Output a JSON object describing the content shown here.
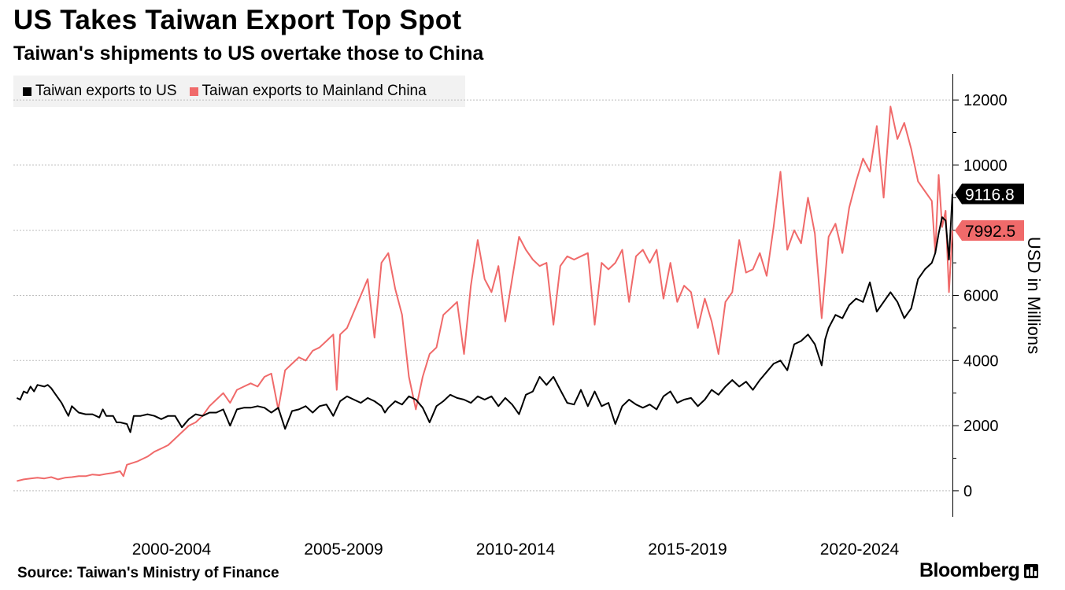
{
  "header": {
    "title": "US Takes Taiwan Export Top Spot",
    "subtitle": "Taiwan's shipments to US overtake those to China"
  },
  "legend": [
    {
      "label": "Taiwan exports to US",
      "color": "#000000"
    },
    {
      "label": "Taiwan exports to Mainland China",
      "color": "#f06a6a"
    }
  ],
  "footer": {
    "source": "Source: Taiwan's Ministry of Finance",
    "brand": "Bloomberg"
  },
  "colors": {
    "us": "#000000",
    "china": "#f06a6a",
    "grid": "#bdbdbd"
  },
  "chart_data": {
    "type": "line",
    "ylabel": "USD in Millions",
    "ylim": [
      -800,
      12800
    ],
    "yticks": [
      0,
      2000,
      4000,
      6000,
      8000,
      10000,
      12000
    ],
    "x_range": [
      1997.9,
      2025.2
    ],
    "xtick_labels": [
      {
        "label": "2000-2004",
        "center": 2002.5
      },
      {
        "label": "2005-2009",
        "center": 2007.5
      },
      {
        "label": "2010-2014",
        "center": 2012.5
      },
      {
        "label": "2015-2019",
        "center": 2017.5
      },
      {
        "label": "2020-2024",
        "center": 2022.5
      }
    ],
    "grid": true,
    "legend_position": "top-left",
    "end_labels": [
      {
        "series": "Taiwan exports to US",
        "value": "9116.8"
      },
      {
        "series": "Taiwan exports to Mainland China",
        "value": "7992.5"
      }
    ],
    "series": [
      {
        "name": "Taiwan exports to US",
        "color": "#000000",
        "points": [
          [
            1998.0,
            2850
          ],
          [
            1998.1,
            2800
          ],
          [
            1998.2,
            3050
          ],
          [
            1998.3,
            3000
          ],
          [
            1998.4,
            3200
          ],
          [
            1998.5,
            3050
          ],
          [
            1998.6,
            3250
          ],
          [
            1998.8,
            3200
          ],
          [
            1998.9,
            3250
          ],
          [
            1999.0,
            3150
          ],
          [
            1999.1,
            3000
          ],
          [
            1999.3,
            2700
          ],
          [
            1999.4,
            2500
          ],
          [
            1999.5,
            2300
          ],
          [
            1999.6,
            2600
          ],
          [
            1999.8,
            2400
          ],
          [
            2000.0,
            2350
          ],
          [
            2000.2,
            2350
          ],
          [
            2000.4,
            2250
          ],
          [
            2000.5,
            2500
          ],
          [
            2000.6,
            2300
          ],
          [
            2000.8,
            2300
          ],
          [
            2000.9,
            2100
          ],
          [
            2001.0,
            2100
          ],
          [
            2001.2,
            2050
          ],
          [
            2001.3,
            1800
          ],
          [
            2001.4,
            2300
          ],
          [
            2001.6,
            2300
          ],
          [
            2001.8,
            2350
          ],
          [
            2002.0,
            2300
          ],
          [
            2002.2,
            2200
          ],
          [
            2002.4,
            2300
          ],
          [
            2002.6,
            2300
          ],
          [
            2002.8,
            1950
          ],
          [
            2003.0,
            2200
          ],
          [
            2003.2,
            2350
          ],
          [
            2003.4,
            2300
          ],
          [
            2003.6,
            2400
          ],
          [
            2003.8,
            2400
          ],
          [
            2004.0,
            2500
          ],
          [
            2004.2,
            2000
          ],
          [
            2004.4,
            2500
          ],
          [
            2004.6,
            2550
          ],
          [
            2004.8,
            2550
          ],
          [
            2005.0,
            2600
          ],
          [
            2005.2,
            2550
          ],
          [
            2005.4,
            2400
          ],
          [
            2005.6,
            2550
          ],
          [
            2005.8,
            1900
          ],
          [
            2006.0,
            2450
          ],
          [
            2006.2,
            2500
          ],
          [
            2006.4,
            2600
          ],
          [
            2006.6,
            2400
          ],
          [
            2006.8,
            2600
          ],
          [
            2007.0,
            2650
          ],
          [
            2007.2,
            2300
          ],
          [
            2007.4,
            2750
          ],
          [
            2007.6,
            2900
          ],
          [
            2007.8,
            2800
          ],
          [
            2008.0,
            2700
          ],
          [
            2008.2,
            2850
          ],
          [
            2008.4,
            2750
          ],
          [
            2008.6,
            2600
          ],
          [
            2008.7,
            2400
          ],
          [
            2008.8,
            2550
          ],
          [
            2009.0,
            2750
          ],
          [
            2009.2,
            2650
          ],
          [
            2009.4,
            2900
          ],
          [
            2009.6,
            2800
          ],
          [
            2009.8,
            2550
          ],
          [
            2010.0,
            2100
          ],
          [
            2010.2,
            2600
          ],
          [
            2010.4,
            2750
          ],
          [
            2010.6,
            2950
          ],
          [
            2010.8,
            2850
          ],
          [
            2011.0,
            2800
          ],
          [
            2011.2,
            2700
          ],
          [
            2011.4,
            2900
          ],
          [
            2011.6,
            2800
          ],
          [
            2011.8,
            2900
          ],
          [
            2012.0,
            2600
          ],
          [
            2012.2,
            2850
          ],
          [
            2012.4,
            2650
          ],
          [
            2012.6,
            2350
          ],
          [
            2012.8,
            2950
          ],
          [
            2013.0,
            3050
          ],
          [
            2013.2,
            3500
          ],
          [
            2013.4,
            3250
          ],
          [
            2013.6,
            3500
          ],
          [
            2013.8,
            3100
          ],
          [
            2014.0,
            2700
          ],
          [
            2014.2,
            2650
          ],
          [
            2014.4,
            3100
          ],
          [
            2014.6,
            2600
          ],
          [
            2014.8,
            3050
          ],
          [
            2015.0,
            2600
          ],
          [
            2015.2,
            2700
          ],
          [
            2015.4,
            2050
          ],
          [
            2015.6,
            2600
          ],
          [
            2015.8,
            2800
          ],
          [
            2016.0,
            2650
          ],
          [
            2016.2,
            2550
          ],
          [
            2016.4,
            2650
          ],
          [
            2016.6,
            2500
          ],
          [
            2016.8,
            2900
          ],
          [
            2017.0,
            3050
          ],
          [
            2017.2,
            2700
          ],
          [
            2017.4,
            2800
          ],
          [
            2017.6,
            2850
          ],
          [
            2017.8,
            2600
          ],
          [
            2018.0,
            2800
          ],
          [
            2018.2,
            3100
          ],
          [
            2018.4,
            2950
          ],
          [
            2018.6,
            3200
          ],
          [
            2018.8,
            3400
          ],
          [
            2019.0,
            3200
          ],
          [
            2019.2,
            3350
          ],
          [
            2019.4,
            3100
          ],
          [
            2019.6,
            3400
          ],
          [
            2019.8,
            3650
          ],
          [
            2020.0,
            3900
          ],
          [
            2020.2,
            4000
          ],
          [
            2020.4,
            3700
          ],
          [
            2020.6,
            4500
          ],
          [
            2020.8,
            4600
          ],
          [
            2021.0,
            4800
          ],
          [
            2021.2,
            4500
          ],
          [
            2021.4,
            3850
          ],
          [
            2021.5,
            4650
          ],
          [
            2021.6,
            5000
          ],
          [
            2021.8,
            5400
          ],
          [
            2022.0,
            5300
          ],
          [
            2022.2,
            5700
          ],
          [
            2022.4,
            5900
          ],
          [
            2022.6,
            5800
          ],
          [
            2022.8,
            6400
          ],
          [
            2023.0,
            5500
          ],
          [
            2023.2,
            5800
          ],
          [
            2023.4,
            6100
          ],
          [
            2023.6,
            5800
          ],
          [
            2023.8,
            5300
          ],
          [
            2024.0,
            5600
          ],
          [
            2024.2,
            6500
          ],
          [
            2024.4,
            6800
          ],
          [
            2024.6,
            7000
          ],
          [
            2024.7,
            7300
          ],
          [
            2024.8,
            7900
          ],
          [
            2024.9,
            8400
          ],
          [
            2025.0,
            8300
          ],
          [
            2025.1,
            7100
          ],
          [
            2025.2,
            9117
          ]
        ]
      },
      {
        "name": "Taiwan exports to Mainland China",
        "color": "#f06a6a",
        "points": [
          [
            1998.0,
            300
          ],
          [
            1998.2,
            350
          ],
          [
            1998.4,
            380
          ],
          [
            1998.6,
            400
          ],
          [
            1998.8,
            380
          ],
          [
            1999.0,
            420
          ],
          [
            1999.2,
            350
          ],
          [
            1999.4,
            400
          ],
          [
            1999.6,
            420
          ],
          [
            1999.8,
            450
          ],
          [
            2000.0,
            450
          ],
          [
            2000.2,
            500
          ],
          [
            2000.4,
            480
          ],
          [
            2000.6,
            520
          ],
          [
            2000.8,
            550
          ],
          [
            2001.0,
            600
          ],
          [
            2001.1,
            450
          ],
          [
            2001.2,
            800
          ],
          [
            2001.5,
            900
          ],
          [
            2001.8,
            1050
          ],
          [
            2002.0,
            1200
          ],
          [
            2002.2,
            1300
          ],
          [
            2002.4,
            1400
          ],
          [
            2002.6,
            1600
          ],
          [
            2002.8,
            1800
          ],
          [
            2003.0,
            2000
          ],
          [
            2003.2,
            2100
          ],
          [
            2003.4,
            2300
          ],
          [
            2003.6,
            2600
          ],
          [
            2003.8,
            2800
          ],
          [
            2004.0,
            3000
          ],
          [
            2004.2,
            2700
          ],
          [
            2004.4,
            3100
          ],
          [
            2004.6,
            3200
          ],
          [
            2004.8,
            3300
          ],
          [
            2005.0,
            3200
          ],
          [
            2005.2,
            3500
          ],
          [
            2005.4,
            3600
          ],
          [
            2005.6,
            2500
          ],
          [
            2005.8,
            3700
          ],
          [
            2006.0,
            3900
          ],
          [
            2006.2,
            4100
          ],
          [
            2006.4,
            4000
          ],
          [
            2006.6,
            4300
          ],
          [
            2006.8,
            4400
          ],
          [
            2007.0,
            4600
          ],
          [
            2007.2,
            4800
          ],
          [
            2007.3,
            3100
          ],
          [
            2007.4,
            4800
          ],
          [
            2007.6,
            5000
          ],
          [
            2007.8,
            5500
          ],
          [
            2008.0,
            6000
          ],
          [
            2008.2,
            6500
          ],
          [
            2008.4,
            4700
          ],
          [
            2008.6,
            7000
          ],
          [
            2008.8,
            7300
          ],
          [
            2009.0,
            6200
          ],
          [
            2009.2,
            5400
          ],
          [
            2009.4,
            3500
          ],
          [
            2009.6,
            2500
          ],
          [
            2009.8,
            3500
          ],
          [
            2010.0,
            4200
          ],
          [
            2010.2,
            4400
          ],
          [
            2010.4,
            5400
          ],
          [
            2010.6,
            5600
          ],
          [
            2010.8,
            5800
          ],
          [
            2011.0,
            4200
          ],
          [
            2011.2,
            6300
          ],
          [
            2011.4,
            7700
          ],
          [
            2011.6,
            6500
          ],
          [
            2011.8,
            6100
          ],
          [
            2012.0,
            6900
          ],
          [
            2012.2,
            5200
          ],
          [
            2012.4,
            6500
          ],
          [
            2012.6,
            7800
          ],
          [
            2012.8,
            7400
          ],
          [
            2013.0,
            7100
          ],
          [
            2013.2,
            6900
          ],
          [
            2013.4,
            7000
          ],
          [
            2013.6,
            5100
          ],
          [
            2013.8,
            6900
          ],
          [
            2014.0,
            7200
          ],
          [
            2014.2,
            7100
          ],
          [
            2014.4,
            7200
          ],
          [
            2014.6,
            7300
          ],
          [
            2014.8,
            5100
          ],
          [
            2015.0,
            7000
          ],
          [
            2015.2,
            6800
          ],
          [
            2015.4,
            7000
          ],
          [
            2015.6,
            7400
          ],
          [
            2015.8,
            5800
          ],
          [
            2016.0,
            7200
          ],
          [
            2016.2,
            7400
          ],
          [
            2016.4,
            7000
          ],
          [
            2016.6,
            7400
          ],
          [
            2016.8,
            5900
          ],
          [
            2017.0,
            7000
          ],
          [
            2017.2,
            5800
          ],
          [
            2017.4,
            6300
          ],
          [
            2017.6,
            6100
          ],
          [
            2017.8,
            5000
          ],
          [
            2018.0,
            5900
          ],
          [
            2018.2,
            5200
          ],
          [
            2018.4,
            4200
          ],
          [
            2018.6,
            5800
          ],
          [
            2018.8,
            6100
          ],
          [
            2019.0,
            7700
          ],
          [
            2019.2,
            6700
          ],
          [
            2019.4,
            6800
          ],
          [
            2019.6,
            7300
          ],
          [
            2019.8,
            6600
          ],
          [
            2020.0,
            8100
          ],
          [
            2020.2,
            9800
          ],
          [
            2020.4,
            7400
          ],
          [
            2020.6,
            8000
          ],
          [
            2020.8,
            7600
          ],
          [
            2021.0,
            9000
          ],
          [
            2021.2,
            7900
          ],
          [
            2021.4,
            5300
          ],
          [
            2021.6,
            7800
          ],
          [
            2021.8,
            8200
          ],
          [
            2022.0,
            7300
          ],
          [
            2022.2,
            8700
          ],
          [
            2022.4,
            9500
          ],
          [
            2022.6,
            10200
          ],
          [
            2022.8,
            9800
          ],
          [
            2023.0,
            11200
          ],
          [
            2023.2,
            9000
          ],
          [
            2023.4,
            11800
          ],
          [
            2023.6,
            10800
          ],
          [
            2023.8,
            11300
          ],
          [
            2024.0,
            10500
          ],
          [
            2024.2,
            9500
          ],
          [
            2024.4,
            9200
          ],
          [
            2024.6,
            8900
          ],
          [
            2024.7,
            7300
          ],
          [
            2024.8,
            9700
          ],
          [
            2024.9,
            8100
          ],
          [
            2025.0,
            8600
          ],
          [
            2025.1,
            6100
          ],
          [
            2025.2,
            7993
          ]
        ]
      }
    ]
  }
}
